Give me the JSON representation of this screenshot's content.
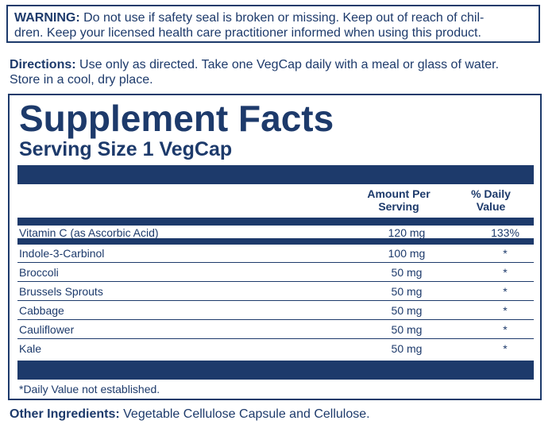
{
  "warning": {
    "label": "WARNING:",
    "line1": "Do not use if safety seal is broken or missing. Keep out of reach of chil-",
    "line2": "dren. Keep your licensed health care practitioner informed when using this product."
  },
  "directions": {
    "label": "Directions:",
    "line1": "Use only as directed. Take one VegCap daily with a meal or glass of water.",
    "line2": "Store in a cool, dry place."
  },
  "facts": {
    "title": "Supplement Facts",
    "serving_size": "Serving Size 1 VegCap",
    "header_amount_line1": "Amount Per",
    "header_amount_line2": "Serving",
    "header_dv_line1": "% Daily",
    "header_dv_line2": "Value",
    "rows": [
      {
        "name": "Vitamin C (as Ascorbic Acid)",
        "amount": "120 mg",
        "dv": "133%"
      },
      {
        "name": "Indole-3-Carbinol",
        "amount": "100 mg",
        "dv": "*"
      },
      {
        "name": "Broccoli",
        "amount": "50 mg",
        "dv": "*"
      },
      {
        "name": "Brussels Sprouts",
        "amount": "50 mg",
        "dv": "*"
      },
      {
        "name": "Cabbage",
        "amount": "50 mg",
        "dv": "*"
      },
      {
        "name": "Cauliflower",
        "amount": "50 mg",
        "dv": "*"
      },
      {
        "name": "Kale",
        "amount": "50 mg",
        "dv": "*"
      }
    ],
    "footnote": "*Daily Value not established."
  },
  "other_ingredients": {
    "label": "Other Ingredients:",
    "text": "Vegetable Cellulose Capsule and Cellulose."
  },
  "colors": {
    "text": "#1d3a6b",
    "background": "#ffffff"
  }
}
